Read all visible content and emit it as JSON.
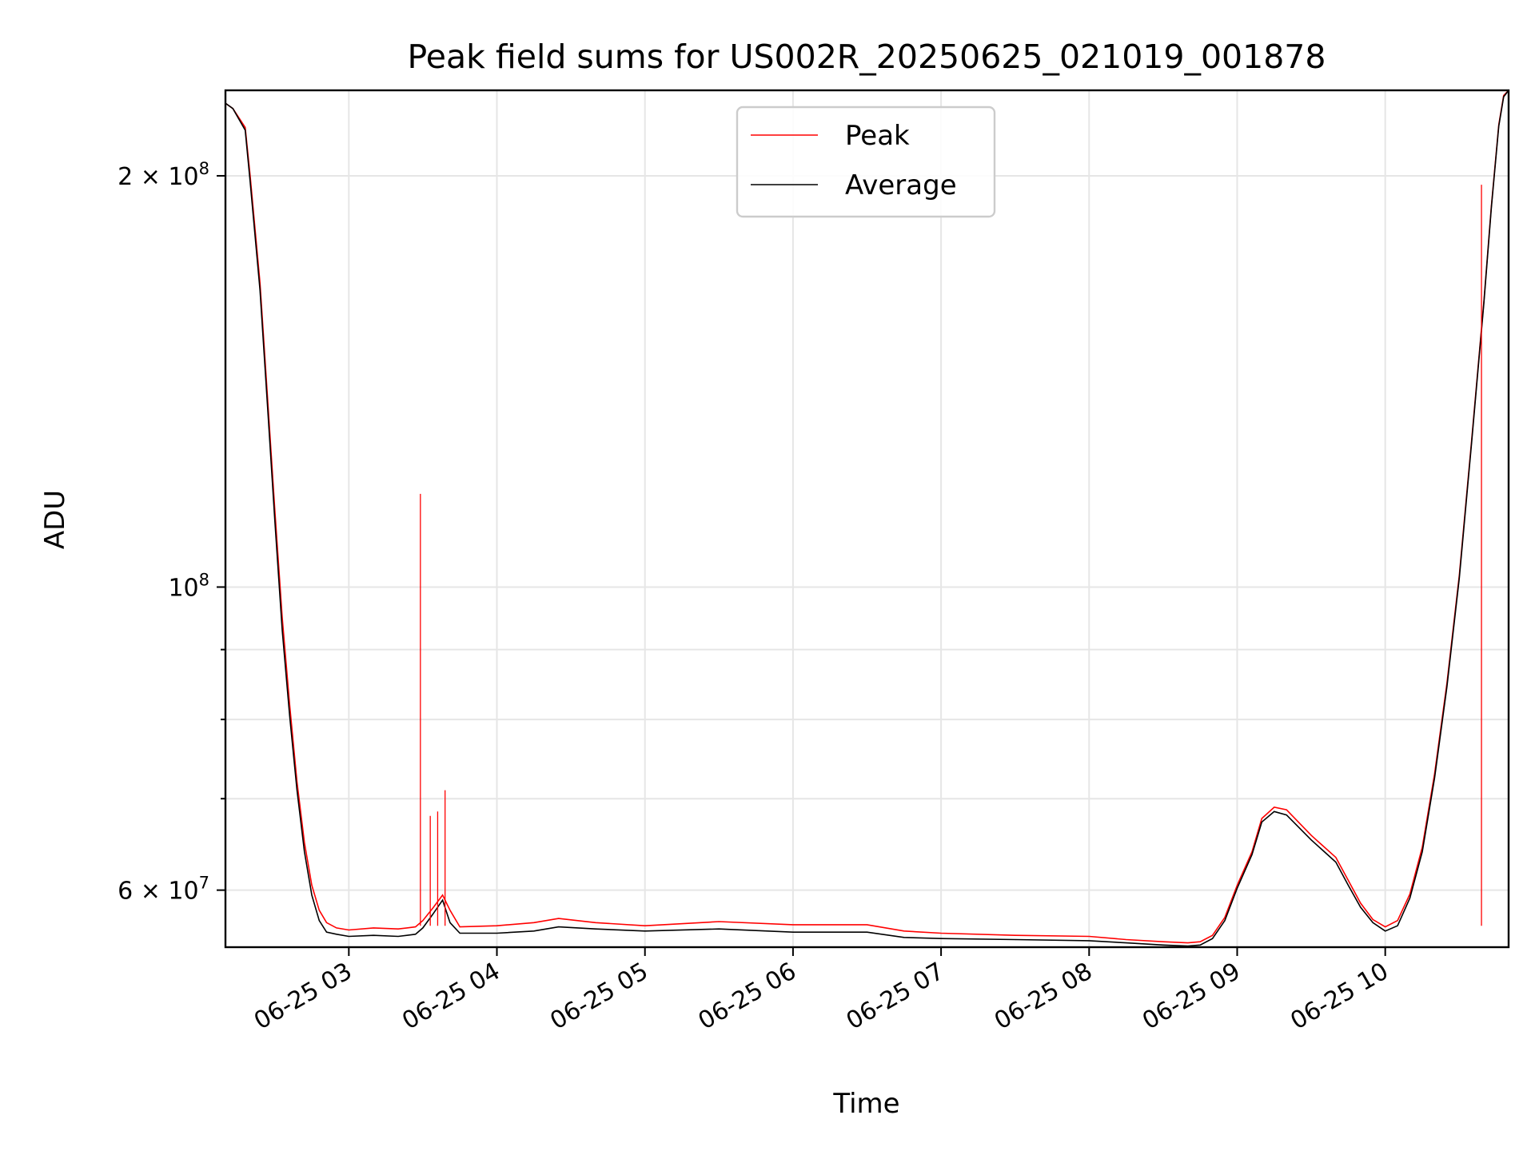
{
  "chart_data": {
    "type": "line",
    "title": "Peak field sums for US002R_20250625_021019_001878",
    "xlabel": "Time",
    "ylabel": "ADU",
    "x_axis": {
      "kind": "time",
      "range": [
        "2025-06-25T02:10",
        "2025-06-25T10:50"
      ],
      "ticks": [
        {
          "value": "2025-06-25T03:00",
          "label": "06-25 03"
        },
        {
          "value": "2025-06-25T04:00",
          "label": "06-25 04"
        },
        {
          "value": "2025-06-25T05:00",
          "label": "06-25 05"
        },
        {
          "value": "2025-06-25T06:00",
          "label": "06-25 06"
        },
        {
          "value": "2025-06-25T07:00",
          "label": "06-25 07"
        },
        {
          "value": "2025-06-25T08:00",
          "label": "06-25 08"
        },
        {
          "value": "2025-06-25T09:00",
          "label": "06-25 09"
        },
        {
          "value": "2025-06-25T10:00",
          "label": "06-25 10"
        }
      ]
    },
    "y_axis": {
      "scale": "log",
      "range": [
        54500000,
        231000000
      ],
      "major_ticks": [
        {
          "value": 60000000,
          "mantissa": "6",
          "exponent": "7"
        },
        {
          "value": 100000000,
          "mantissa": "",
          "exponent": "8"
        },
        {
          "value": 200000000,
          "mantissa": "2",
          "exponent": "8"
        }
      ],
      "minor_ticks": [
        70000000,
        80000000,
        90000000
      ]
    },
    "grid": true,
    "legend": {
      "placement": "upper-center",
      "entries": [
        "Peak",
        "Average"
      ]
    },
    "series": [
      {
        "name": "Peak",
        "color": "#ff0000",
        "x": [
          "2025-06-25T02:10",
          "2025-06-25T02:13",
          "2025-06-25T02:18",
          "2025-06-25T02:20",
          "2025-06-25T02:24",
          "2025-06-25T02:27",
          "2025-06-25T02:30",
          "2025-06-25T02:33",
          "2025-06-25T02:36",
          "2025-06-25T02:39",
          "2025-06-25T02:42",
          "2025-06-25T02:45",
          "2025-06-25T02:48",
          "2025-06-25T02:51",
          "2025-06-25T02:55",
          "2025-06-25T03:00",
          "2025-06-25T03:10",
          "2025-06-25T03:20",
          "2025-06-25T03:27",
          "2025-06-25T03:30",
          "2025-06-25T03:34",
          "2025-06-25T03:38",
          "2025-06-25T03:41",
          "2025-06-25T03:45",
          "2025-06-25T04:00",
          "2025-06-25T04:15",
          "2025-06-25T04:25",
          "2025-06-25T04:40",
          "2025-06-25T05:00",
          "2025-06-25T05:30",
          "2025-06-25T06:00",
          "2025-06-25T06:30",
          "2025-06-25T06:45",
          "2025-06-25T07:00",
          "2025-06-25T07:30",
          "2025-06-25T08:00",
          "2025-06-25T08:15",
          "2025-06-25T08:30",
          "2025-06-25T08:40",
          "2025-06-25T08:45",
          "2025-06-25T08:50",
          "2025-06-25T08:55",
          "2025-06-25T09:00",
          "2025-06-25T09:06",
          "2025-06-25T09:10",
          "2025-06-25T09:15",
          "2025-06-25T09:20",
          "2025-06-25T09:30",
          "2025-06-25T09:40",
          "2025-06-25T09:45",
          "2025-06-25T09:50",
          "2025-06-25T09:55",
          "2025-06-25T10:00",
          "2025-06-25T10:05",
          "2025-06-25T10:10",
          "2025-06-25T10:15",
          "2025-06-25T10:20",
          "2025-06-25T10:25",
          "2025-06-25T10:30",
          "2025-06-25T10:35",
          "2025-06-25T10:40",
          "2025-06-25T10:43",
          "2025-06-25T10:46",
          "2025-06-25T10:48",
          "2025-06-25T10:50"
        ],
        "values": [
          226000000,
          224000000,
          217000000,
          200000000,
          167000000,
          138000000,
          114000000,
          95000000,
          82000000,
          72000000,
          65000000,
          60500000,
          58000000,
          56800000,
          56300000,
          56100000,
          56300000,
          56200000,
          56400000,
          57000000,
          58200000,
          59500000,
          58000000,
          56400000,
          56500000,
          56800000,
          57200000,
          56800000,
          56500000,
          56900000,
          56600000,
          56600000,
          56000000,
          55800000,
          55600000,
          55500000,
          55200000,
          55000000,
          54900000,
          55000000,
          55600000,
          57300000,
          60500000,
          64000000,
          67700000,
          69000000,
          68700000,
          65800000,
          63400000,
          61000000,
          58700000,
          57100000,
          56400000,
          57000000,
          59600000,
          64500000,
          73000000,
          85000000,
          102000000,
          128000000,
          162000000,
          190000000,
          218000000,
          229000000,
          231000000
        ]
      },
      {
        "name": "Average",
        "color": "#000000",
        "x": [
          "2025-06-25T02:10",
          "2025-06-25T02:13",
          "2025-06-25T02:18",
          "2025-06-25T02:20",
          "2025-06-25T02:24",
          "2025-06-25T02:27",
          "2025-06-25T02:30",
          "2025-06-25T02:33",
          "2025-06-25T02:36",
          "2025-06-25T02:39",
          "2025-06-25T02:42",
          "2025-06-25T02:45",
          "2025-06-25T02:48",
          "2025-06-25T02:51",
          "2025-06-25T02:55",
          "2025-06-25T03:00",
          "2025-06-25T03:10",
          "2025-06-25T03:20",
          "2025-06-25T03:27",
          "2025-06-25T03:30",
          "2025-06-25T03:34",
          "2025-06-25T03:38",
          "2025-06-25T03:41",
          "2025-06-25T03:45",
          "2025-06-25T04:00",
          "2025-06-25T04:15",
          "2025-06-25T04:25",
          "2025-06-25T04:40",
          "2025-06-25T05:00",
          "2025-06-25T05:30",
          "2025-06-25T06:00",
          "2025-06-25T06:30",
          "2025-06-25T06:45",
          "2025-06-25T07:00",
          "2025-06-25T07:30",
          "2025-06-25T08:00",
          "2025-06-25T08:15",
          "2025-06-25T08:30",
          "2025-06-25T08:40",
          "2025-06-25T08:45",
          "2025-06-25T08:50",
          "2025-06-25T08:55",
          "2025-06-25T09:00",
          "2025-06-25T09:06",
          "2025-06-25T09:10",
          "2025-06-25T09:15",
          "2025-06-25T09:20",
          "2025-06-25T09:30",
          "2025-06-25T09:40",
          "2025-06-25T09:45",
          "2025-06-25T09:50",
          "2025-06-25T09:55",
          "2025-06-25T10:00",
          "2025-06-25T10:05",
          "2025-06-25T10:10",
          "2025-06-25T10:15",
          "2025-06-25T10:20",
          "2025-06-25T10:25",
          "2025-06-25T10:30",
          "2025-06-25T10:35",
          "2025-06-25T10:40",
          "2025-06-25T10:43",
          "2025-06-25T10:46",
          "2025-06-25T10:48",
          "2025-06-25T10:50"
        ],
        "values": [
          226000000,
          224000000,
          216000000,
          198000000,
          165000000,
          136000000,
          112000000,
          93000000,
          80500000,
          71000000,
          64000000,
          59500000,
          57000000,
          55900000,
          55700000,
          55500000,
          55600000,
          55500000,
          55700000,
          56300000,
          57600000,
          59000000,
          56800000,
          55800000,
          55800000,
          56000000,
          56400000,
          56200000,
          56000000,
          56200000,
          55900000,
          55900000,
          55400000,
          55300000,
          55200000,
          55100000,
          54900000,
          54700000,
          54600000,
          54700000,
          55300000,
          57000000,
          60200000,
          63700000,
          67300000,
          68500000,
          68100000,
          65300000,
          62900000,
          60500000,
          58300000,
          56800000,
          56000000,
          56500000,
          59200000,
          64000000,
          72500000,
          84500000,
          101500000,
          127500000,
          161500000,
          189500000,
          217500000,
          228500000,
          231000000
        ]
      }
    ],
    "annotations": {
      "peak_spikes": [
        {
          "x": "2025-06-25T03:29",
          "value": 117000000
        },
        {
          "x": "2025-06-25T03:33",
          "value": 68000000
        },
        {
          "x": "2025-06-25T03:36",
          "value": 68500000
        },
        {
          "x": "2025-06-25T03:39",
          "value": 71000000
        },
        {
          "x": "2025-06-25T10:39",
          "value": 197000000
        }
      ]
    }
  }
}
